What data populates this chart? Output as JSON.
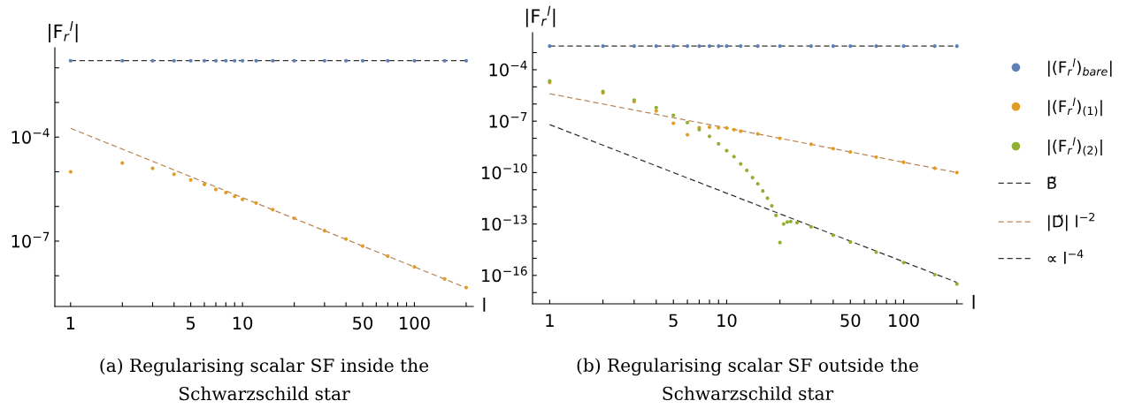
{
  "chart_data": [
    {
      "type": "scatter",
      "title": "(a) Regularising scalar SF inside the Schwarzschild star",
      "xlabel": "l",
      "ylabel": "|F$_{r}$$^{l}$|",
      "log": "xy",
      "legend": false,
      "xlim": [
        0.81,
        220
      ],
      "ylim": [
        1.3e-09,
        0.038
      ],
      "xticks": [
        1,
        {
          "value": 2,
          "label": null
        },
        {
          "value": 3,
          "label": null
        },
        {
          "value": 4,
          "label": null
        },
        5,
        {
          "value": 6,
          "label": null
        },
        {
          "value": 7,
          "label": null
        },
        {
          "value": 8,
          "label": null
        },
        {
          "value": 9,
          "label": null
        },
        10,
        {
          "value": 20,
          "label": null
        },
        {
          "value": 30,
          "label": null
        },
        {
          "value": 40,
          "label": null
        },
        50,
        {
          "value": 60,
          "label": null
        },
        {
          "value": 70,
          "label": null
        },
        {
          "value": 80,
          "label": null
        },
        {
          "value": 90,
          "label": null
        },
        100,
        {
          "value": 200,
          "label": null
        }
      ],
      "yticks": [
        {
          "value": 0.01,
          "label": null
        },
        {
          "value": 0.001,
          "label": null
        },
        {
          "value": 0.0001,
          "label": "10$^{−4}$"
        },
        {
          "value": 1e-05,
          "label": null
        },
        {
          "value": 1e-06,
          "label": null
        },
        {
          "value": 1e-07,
          "label": "10$^{−7}$"
        },
        {
          "value": 1e-08,
          "label": null
        }
      ],
      "series": [
        {
          "type": "line",
          "line_style": "dashed",
          "color": "#333333",
          "x": [
            1,
            200
          ],
          "values": [
            0.016,
            0.016
          ]
        },
        {
          "marker": "circle",
          "color": "#5e81b5",
          "x": [
            1,
            2,
            3,
            4,
            5,
            6,
            7,
            8,
            9,
            10,
            12,
            15,
            20,
            30,
            40,
            50,
            70,
            100,
            150,
            200
          ],
          "values": [
            0.016,
            0.016,
            0.016,
            0.016,
            0.016,
            0.016,
            0.016,
            0.016,
            0.016,
            0.016,
            0.016,
            0.016,
            0.016,
            0.016,
            0.016,
            0.016,
            0.016,
            0.016,
            0.016,
            0.016
          ]
        },
        {
          "type": "line",
          "line_style": "dashed",
          "color": "#b8875a",
          "x": [
            1,
            200
          ],
          "values": [
            0.00018,
            4.5e-09
          ]
        },
        {
          "marker": "circle",
          "color": "#e19c24",
          "x": [
            1,
            2,
            3,
            4,
            5,
            6,
            7,
            8,
            9,
            10,
            12,
            15,
            20,
            30,
            40,
            50,
            70,
            100,
            150,
            200
          ],
          "values": [
            1e-05,
            1.8e-05,
            1.26e-05,
            8.5e-06,
            5.8e-06,
            4.3e-06,
            3.1e-06,
            2.5e-06,
            1.95e-06,
            1.6e-06,
            1.26e-06,
            8.1e-07,
            4.6e-07,
            2e-07,
            1.15e-07,
            7.2e-08,
            3.7e-08,
            1.8e-08,
            8.1e-09,
            4.6e-09
          ]
        }
      ]
    },
    {
      "type": "scatter",
      "title": "(b) Regularising scalar SF outside the Schwarzschild star",
      "xlabel": "l",
      "ylabel": "|F$_{r}$$^{l}$|",
      "log": "xy",
      "legend": "right",
      "xlim": [
        0.8,
        215
      ],
      "ylim": [
        2.2e-18,
        0.0145
      ],
      "xticks": [
        1,
        {
          "value": 2,
          "label": null
        },
        {
          "value": 3,
          "label": null
        },
        {
          "value": 4,
          "label": null
        },
        5,
        {
          "value": 6,
          "label": null
        },
        {
          "value": 7,
          "label": null
        },
        {
          "value": 8,
          "label": null
        },
        {
          "value": 9,
          "label": null
        },
        10,
        {
          "value": 20,
          "label": null
        },
        {
          "value": 30,
          "label": null
        },
        {
          "value": 40,
          "label": null
        },
        50,
        {
          "value": 60,
          "label": null
        },
        {
          "value": 70,
          "label": null
        },
        {
          "value": 80,
          "label": null
        },
        {
          "value": 90,
          "label": null
        },
        100,
        {
          "value": 200,
          "label": null
        }
      ],
      "yticks": [
        {
          "value": 0.001,
          "label": null
        },
        {
          "value": 0.0001,
          "label": "10$^{−4}$"
        },
        {
          "value": 1e-05,
          "label": null
        },
        {
          "value": 1e-06,
          "label": null
        },
        {
          "value": 1e-07,
          "label": "10$^{−7}$"
        },
        {
          "value": 1e-08,
          "label": null
        },
        {
          "value": 1e-09,
          "label": null
        },
        {
          "value": 1e-10,
          "label": "10$^{−10}$"
        },
        {
          "value": 1e-11,
          "label": null
        },
        {
          "value": 1e-12,
          "label": null
        },
        {
          "value": 1e-13,
          "label": "10$^{−13}$"
        },
        {
          "value": 1e-14,
          "label": null
        },
        {
          "value": 1e-15,
          "label": null
        },
        {
          "value": 1e-16,
          "label": "10$^{−16}$"
        },
        {
          "value": 1e-17,
          "label": null
        }
      ],
      "series": [
        {
          "marker": "circle",
          "name": "|(F$_{r}$$^{l}$)$_{bare}$|",
          "color": "#5e81b5",
          "x": [
            1,
            2,
            3,
            4,
            5,
            6,
            7,
            8,
            9,
            10,
            12,
            15,
            20,
            30,
            40,
            50,
            70,
            100,
            150,
            200
          ],
          "values": [
            0.0024,
            0.0024,
            0.0024,
            0.0024,
            0.0024,
            0.0024,
            0.0024,
            0.0024,
            0.0024,
            0.0024,
            0.0024,
            0.0024,
            0.0024,
            0.0024,
            0.0024,
            0.0024,
            0.0024,
            0.0024,
            0.0024,
            0.0024
          ]
        },
        {
          "marker": "circle",
          "name": "|(F$_{r}$$^{l}$)$_{(1)}$|",
          "color": "#e19c24",
          "x": [
            1,
            2,
            3,
            4,
            5,
            6,
            7,
            8,
            9,
            10,
            11,
            12,
            15,
            20,
            30,
            40,
            50,
            70,
            100,
            150,
            200
          ],
          "values": [
            1.8e-05,
            4.5e-06,
            1.4e-06,
            4e-07,
            7.6e-08,
            1.6e-08,
            4.2e-08,
            4.4e-08,
            4.2e-08,
            4e-08,
            3.2e-08,
            2.6e-08,
            1.8e-08,
            1e-08,
            4.5e-09,
            2.5e-09,
            1.6e-09,
            8e-10,
            4e-10,
            1.8e-10,
            1e-10
          ]
        },
        {
          "marker": "circle",
          "name": "|(F$_{r}$$^{l}$)$_{(2)}$|",
          "color": "#8fb032",
          "x": [
            1,
            2,
            3,
            4,
            5,
            6,
            7,
            8,
            9,
            10,
            11,
            12,
            13,
            14,
            15,
            16,
            17,
            18,
            19,
            20,
            21,
            22,
            23,
            25,
            30,
            40,
            50,
            70,
            100,
            150,
            200
          ],
          "values": [
            2.2e-05,
            5.4e-06,
            1.7e-06,
            6.2e-07,
            2.2e-07,
            8.3e-08,
            3.2e-08,
            1.3e-08,
            4.8e-09,
            1.9e-09,
            8.5e-10,
            3.2e-10,
            1.35e-10,
            5.1e-11,
            2.2e-11,
            8.5e-12,
            3.2e-12,
            1.15e-12,
            3.2e-13,
            8.3e-15,
            1e-13,
            1.3e-13,
            1.4e-13,
            1.2e-13,
            6.9e-14,
            2.2e-14,
            8.9e-15,
            2.3e-15,
            5.6e-16,
            1.1e-16,
            3.2e-17
          ]
        },
        {
          "type": "line",
          "name": "B̃",
          "line_style": "dashed",
          "color": "#333333",
          "x": [
            1,
            200
          ],
          "values": [
            0.0024,
            0.0024
          ]
        },
        {
          "type": "line",
          "name": "|D̃| l$^{−2}$",
          "line_style": "dashed",
          "color": "#b8875a",
          "x": [
            1,
            200
          ],
          "values": [
            4e-06,
            1e-10
          ]
        },
        {
          "type": "line",
          "name": "∝ l$^{−4}$",
          "line_style": "dashed",
          "color": "#333333",
          "x": [
            1,
            200
          ],
          "values": [
            6.3e-08,
            3.9e-17
          ]
        }
      ]
    }
  ]
}
